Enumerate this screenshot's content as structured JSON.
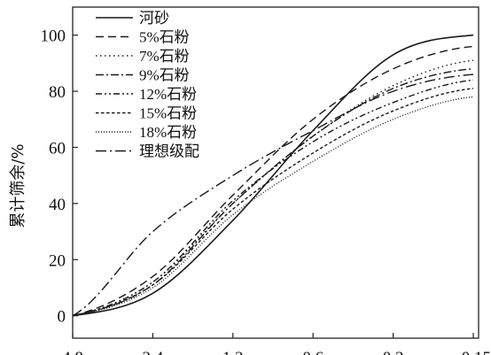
{
  "chart_data": {
    "type": "line",
    "title": "",
    "xlabel": "",
    "ylabel": "累计筛余/%",
    "x": [
      "4.8",
      "2.4",
      "1.2",
      "0.6",
      "0.3",
      "0.15"
    ],
    "xticks": [
      "4.8",
      "2.4",
      "1.2",
      "0.6",
      "0.3",
      "0.15"
    ],
    "yticks": [
      "0",
      "20",
      "40",
      "60",
      "80",
      "100"
    ],
    "ylim": [
      -8,
      110
    ],
    "grid": false,
    "legend_position": "top-left",
    "series": [
      {
        "name": "河砂",
        "dash": "solid",
        "values": [
          0,
          8,
          34,
          66,
          93,
          100
        ]
      },
      {
        "name": "5%石粉",
        "dash": "dash",
        "values": [
          0,
          14,
          43,
          70,
          88,
          96
        ]
      },
      {
        "name": "7%石粉",
        "dash": "dot",
        "values": [
          0,
          12,
          40,
          64,
          82,
          91
        ]
      },
      {
        "name": "9%石粉",
        "dash": "dashdot",
        "values": [
          0,
          11,
          40,
          64,
          81,
          88
        ]
      },
      {
        "name": "12%石粉",
        "dash": "dashdotdot",
        "values": [
          0,
          12,
          41,
          62,
          76,
          84
        ]
      },
      {
        "name": "15%石粉",
        "dash": "shortdash",
        "values": [
          0,
          11,
          38,
          58,
          73,
          81
        ]
      },
      {
        "name": "18%石粉",
        "dash": "finedot",
        "values": [
          0,
          10,
          36,
          55,
          70,
          78
        ]
      },
      {
        "name": "理想级配",
        "dash": "longdashdot",
        "values": [
          0,
          30,
          50,
          66,
          80,
          86
        ]
      }
    ]
  }
}
